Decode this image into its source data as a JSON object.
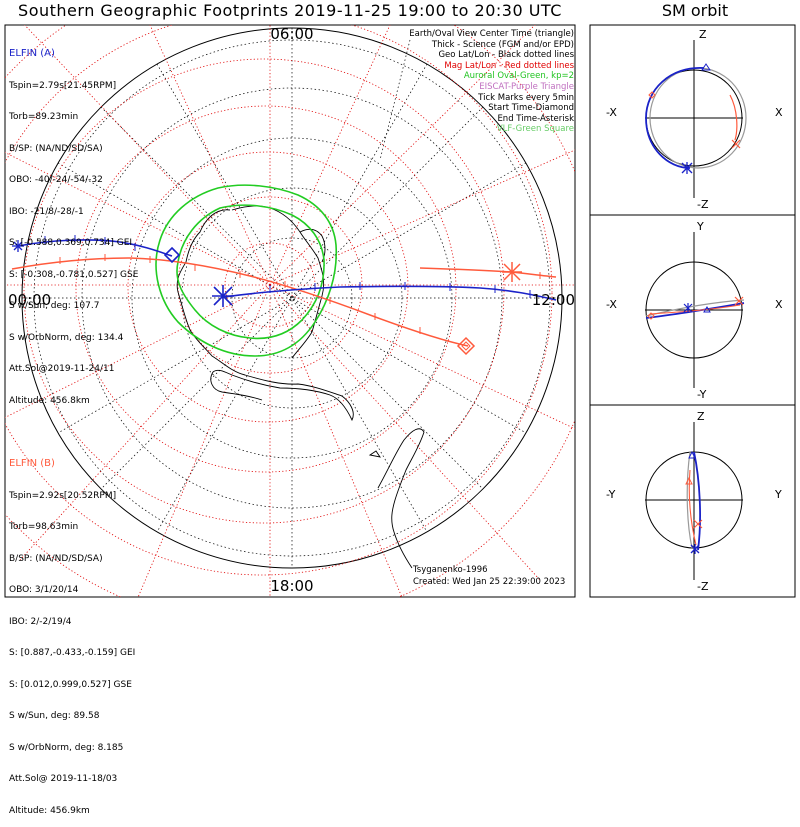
{
  "title": "Southern Geographic Footprints 2019-11-25 19:00 to 20:30 UTC",
  "sm_title": "SM orbit",
  "mlt_labels": {
    "top": "06:00",
    "left": "00:00",
    "right": "12:00",
    "bottom": "18:00"
  },
  "elfin_a": {
    "name": "ELFIN (A)",
    "color": "#1a22c8",
    "lines": [
      "Tspin=2.79s[21.45RPM]",
      "Torb=89.23min",
      "B/SP: (NA/ND/SD/SA)",
      "OBO: -40/-24/-54/-32",
      "IBO: -21/8/-28/-1",
      "S: [-0.588,0.369,0.734] GEI",
      "S: [-0.308,-0.781,0.527] GSE",
      "S w/Sun, deg: 107.7",
      "S w/OrbNorm, deg: 134.4",
      "Att.Sol@2019-11-24/11",
      "Altitude: 456.8km"
    ]
  },
  "elfin_b": {
    "name": "ELFIN (B)",
    "color": "#ff5a3c",
    "lines": [
      "Tspin=2.92s[20.52RPM]",
      "Torb=98.63min",
      "B/SP: (NA/ND/SD/SA)",
      "OBO: 3/1/20/14",
      "IBO: 2/-2/19/4",
      "S: [0.887,-0.433,-0.159] GEI",
      "S: [0.012,0.999,0.527] GSE",
      "S w/Sun, deg: 89.58",
      "S w/OrbNorm, deg: 8.185",
      "Att.Sol@ 2019-11-18/03",
      "Altitude: 456.9km"
    ]
  },
  "legend": [
    {
      "text": "Earth/Oval View Center Time (triangle)",
      "color": "#000000"
    },
    {
      "text": "Thick - Science (FGM and/or EPD)",
      "color": "#000000"
    },
    {
      "text": "Geo Lat/Lon - Black dotted lines",
      "color": "#000000"
    },
    {
      "text": "Mag Lat/Lon - Red dotted lines",
      "color": "#e00000"
    },
    {
      "text": "Auroral Oval-Green, kp=2",
      "color": "#22c422"
    },
    {
      "text": "EISCAT-Purple Triangle",
      "color": "#c070c0"
    },
    {
      "text": "Tick Marks every 5min",
      "color": "#000000"
    },
    {
      "text": "Start Time-Diamond",
      "color": "#000000"
    },
    {
      "text": "End Time-Asterisk",
      "color": "#000000"
    },
    {
      "text": "VLF-Green Square",
      "color": "#66cc66"
    }
  ],
  "credits": [
    "Tsyganenko-1996",
    "Created: Wed Jan 25 22:39:00 2023"
  ],
  "sm_panels": [
    {
      "top": "Z",
      "bottom": "-Z",
      "left": "-X",
      "right": "X"
    },
    {
      "top": "Y",
      "bottom": "-Y",
      "left": "-X",
      "right": "X"
    },
    {
      "top": "Z",
      "bottom": "-Z",
      "left": "-Y",
      "right": "Y"
    }
  ],
  "colors": {
    "elfin_a": "#1a22c8",
    "elfin_b": "#ff5a3c",
    "oval": "#22cc22",
    "mag_grid": "#e00000",
    "geo_grid": "#000000",
    "vlf": "#66cc66"
  }
}
